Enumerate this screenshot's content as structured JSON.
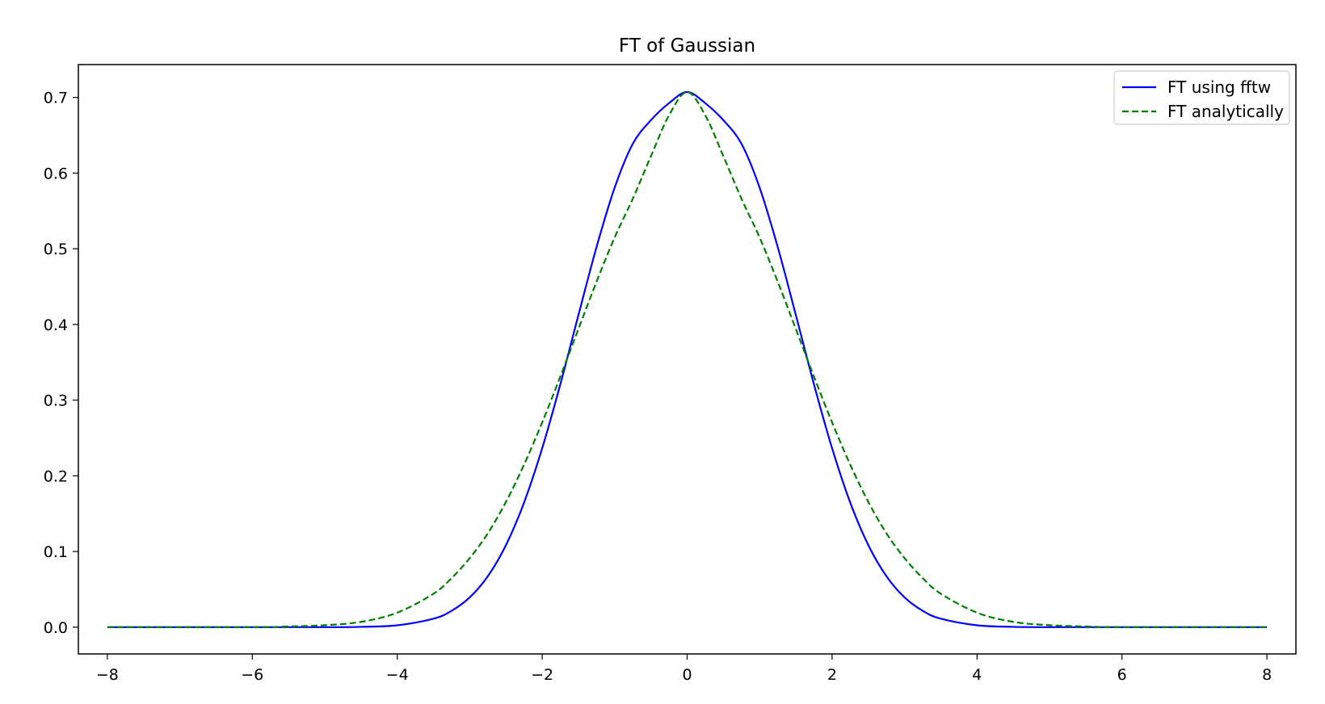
{
  "chart_data": {
    "type": "line",
    "title": "FT of Gaussian",
    "xlabel": "",
    "ylabel": "",
    "xlim": [
      -8.4,
      8.4
    ],
    "ylim": [
      -0.0354,
      0.7434
    ],
    "xticks": [
      -8,
      -6,
      -4,
      -2,
      0,
      2,
      4,
      6,
      8
    ],
    "xtick_labels": [
      "−8",
      "−6",
      "−4",
      "−2",
      "0",
      "2",
      "4",
      "6",
      "8"
    ],
    "yticks": [
      0.0,
      0.1,
      0.2,
      0.3,
      0.4,
      0.5,
      0.6,
      0.7
    ],
    "ytick_labels": [
      "0.0",
      "0.1",
      "0.2",
      "0.3",
      "0.4",
      "0.5",
      "0.6",
      "0.7"
    ],
    "grid": false,
    "legend_position": "top-right",
    "series": [
      {
        "name": "FT using fftw",
        "color": "#0000ff",
        "style": "solid",
        "x": [
          -8,
          -6,
          -5,
          -4.5,
          -4,
          -3.5,
          -3.25,
          -3,
          -2.75,
          -2.5,
          -2.25,
          -2,
          -1.75,
          -1.5,
          -1.25,
          -1,
          -0.75,
          -0.5,
          -0.25,
          0,
          0.25,
          0.5,
          0.75,
          1,
          1.25,
          1.5,
          1.75,
          2,
          2.25,
          2.5,
          2.75,
          3,
          3.25,
          3.5,
          4,
          4.5,
          5,
          6,
          8
        ],
        "y": [
          0.0,
          0.0,
          0.0,
          0.0004,
          0.0025,
          0.0112,
          0.0216,
          0.0393,
          0.0673,
          0.1084,
          0.1647,
          0.2364,
          0.3209,
          0.4124,
          0.5023,
          0.5808,
          0.6387,
          0.6699,
          0.6924,
          0.7071,
          0.6924,
          0.6699,
          0.6387,
          0.5808,
          0.5023,
          0.4124,
          0.3209,
          0.2364,
          0.1647,
          0.1084,
          0.0673,
          0.0393,
          0.0216,
          0.0112,
          0.0025,
          0.0004,
          0.0,
          0.0,
          0.0
        ]
      },
      {
        "name": "FT analytically",
        "color": "#008000",
        "style": "dashed",
        "x": [
          -8,
          -6,
          -5.5,
          -5,
          -4.5,
          -4,
          -3.5,
          -3.25,
          -3,
          -2.75,
          -2.5,
          -2.25,
          -2,
          -1.75,
          -1.5,
          -1.25,
          -1,
          -0.75,
          -0.5,
          -0.25,
          0,
          0.25,
          0.5,
          0.75,
          1,
          1.25,
          1.5,
          1.75,
          2,
          2.25,
          2.5,
          2.75,
          3,
          3.25,
          3.5,
          4,
          4.5,
          5,
          5.5,
          6,
          8
        ],
        "y": [
          0.0,
          0.0,
          0.0009,
          0.0026,
          0.007,
          0.0191,
          0.0442,
          0.0648,
          0.0912,
          0.124,
          0.1655,
          0.2148,
          0.2706,
          0.3311,
          0.394,
          0.4565,
          0.515,
          0.5661,
          0.6223,
          0.6764,
          0.7071,
          0.6764,
          0.6223,
          0.5661,
          0.515,
          0.4565,
          0.394,
          0.3311,
          0.2706,
          0.2148,
          0.1655,
          0.124,
          0.0912,
          0.0648,
          0.0442,
          0.0191,
          0.007,
          0.0026,
          0.0009,
          0.0,
          0.0
        ]
      }
    ]
  }
}
